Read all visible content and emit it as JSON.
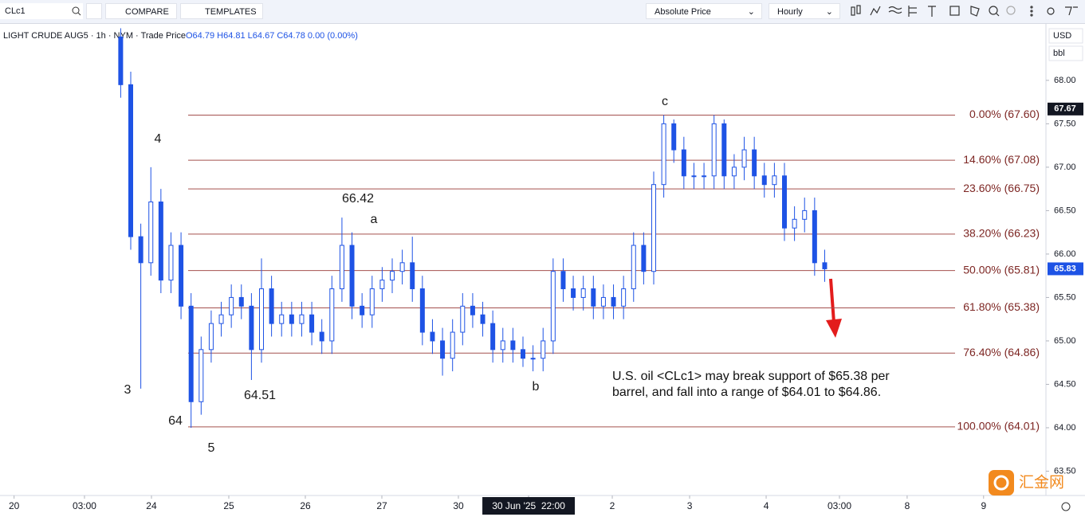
{
  "toolbar": {
    "symbol": "CLc1",
    "compare": "COMPARE",
    "templates": "TEMPLATES",
    "price_mode": "Absolute Price",
    "interval": "Hourly",
    "currency": "USD",
    "unit": "bbl"
  },
  "chart_data": {
    "type": "candlestick",
    "title": "LIGHT CRUDE AUG5 · 1h · NYM · Trade Price",
    "subtitle": "O64.79 H64.81 L64.67 C64.78 0.00 (0.00%)",
    "color": "#1e53e5",
    "x": [
      0,
      1,
      2,
      3,
      4,
      5,
      6,
      7,
      8,
      9,
      10,
      11,
      12,
      13,
      14,
      15,
      16,
      17,
      18,
      19,
      20,
      21,
      22,
      23,
      24,
      25,
      26,
      27,
      28,
      29,
      30,
      31,
      32,
      33,
      34,
      35,
      36,
      37,
      38,
      39,
      40,
      41,
      42,
      43,
      44,
      45,
      46,
      47,
      48,
      49,
      50,
      51,
      52,
      53,
      54,
      55,
      56,
      57,
      58,
      59,
      60,
      61,
      62,
      63,
      64,
      65,
      66,
      67,
      68,
      69,
      70
    ],
    "open": [
      68.5,
      67.95,
      66.2,
      65.9,
      66.6,
      65.7,
      66.1,
      65.4,
      64.3,
      64.9,
      65.2,
      65.3,
      65.5,
      65.4,
      64.9,
      65.6,
      65.2,
      65.3,
      65.2,
      65.3,
      65.1,
      65.0,
      65.6,
      66.1,
      65.4,
      65.3,
      65.6,
      65.7,
      65.8,
      65.9,
      65.6,
      65.1,
      65.0,
      64.8,
      65.1,
      65.4,
      65.3,
      65.2,
      64.9,
      65.0,
      64.9,
      64.8,
      64.8,
      65.0,
      65.8,
      65.6,
      65.5,
      65.6,
      65.4,
      65.5,
      65.4,
      65.6,
      66.1,
      65.8,
      66.8,
      67.5,
      67.2,
      66.9,
      66.9,
      66.9,
      67.5,
      66.9,
      67.0,
      67.2,
      66.9,
      66.8,
      66.9,
      66.3,
      66.4,
      66.5,
      65.9
    ],
    "high": [
      68.6,
      68.1,
      66.35,
      67.0,
      66.75,
      66.25,
      66.25,
      65.55,
      65.05,
      65.35,
      65.45,
      65.65,
      65.65,
      65.55,
      65.95,
      65.75,
      65.45,
      65.45,
      65.45,
      65.45,
      65.25,
      65.75,
      66.42,
      66.25,
      65.55,
      65.75,
      65.85,
      65.95,
      66.05,
      66.2,
      65.75,
      65.25,
      65.15,
      65.25,
      65.55,
      65.55,
      65.45,
      65.35,
      65.15,
      65.15,
      65.05,
      64.95,
      65.15,
      65.95,
      65.95,
      65.75,
      65.75,
      65.75,
      65.65,
      65.65,
      65.75,
      66.25,
      66.25,
      66.95,
      67.6,
      67.55,
      67.35,
      67.05,
      67.05,
      67.6,
      67.55,
      67.15,
      67.35,
      67.35,
      67.05,
      67.05,
      67.05,
      66.55,
      66.65,
      66.65,
      66.05
    ],
    "low": [
      67.8,
      66.05,
      64.45,
      65.75,
      65.55,
      65.55,
      65.25,
      64.0,
      64.15,
      64.75,
      65.05,
      65.15,
      65.25,
      64.55,
      64.75,
      65.05,
      65.05,
      65.05,
      65.05,
      64.95,
      64.85,
      64.85,
      65.45,
      65.25,
      65.15,
      65.15,
      65.45,
      65.55,
      65.65,
      65.45,
      64.95,
      64.85,
      64.6,
      64.65,
      64.95,
      65.15,
      65.05,
      64.75,
      64.75,
      64.75,
      64.7,
      64.65,
      64.65,
      64.85,
      65.45,
      65.35,
      65.35,
      65.25,
      65.25,
      65.25,
      65.25,
      65.45,
      65.65,
      65.65,
      66.65,
      67.05,
      66.75,
      66.75,
      66.75,
      66.75,
      66.75,
      66.75,
      66.85,
      66.75,
      66.65,
      66.65,
      66.15,
      66.15,
      66.25,
      65.75,
      65.68
    ],
    "close": [
      67.95,
      66.2,
      65.9,
      66.6,
      65.7,
      66.1,
      65.4,
      64.3,
      64.9,
      65.2,
      65.3,
      65.5,
      65.4,
      64.9,
      65.6,
      65.2,
      65.3,
      65.2,
      65.3,
      65.1,
      65.0,
      65.6,
      66.1,
      65.4,
      65.3,
      65.6,
      65.7,
      65.8,
      65.9,
      65.6,
      65.1,
      65.0,
      64.8,
      65.1,
      65.4,
      65.3,
      65.2,
      64.9,
      65.0,
      64.9,
      64.8,
      64.8,
      65.0,
      65.8,
      65.6,
      65.5,
      65.6,
      65.4,
      65.5,
      65.4,
      65.6,
      66.1,
      65.8,
      66.8,
      67.5,
      67.2,
      66.9,
      66.9,
      66.9,
      67.5,
      66.9,
      67.0,
      67.2,
      66.9,
      66.8,
      66.9,
      66.3,
      66.4,
      66.5,
      65.9,
      65.83
    ],
    "xlim": [
      -12,
      92
    ],
    "xticks": [
      {
        "value": -10.6,
        "label": "20"
      },
      {
        "value": -3.6,
        "label": "03:00"
      },
      {
        "value": 3.06,
        "label": "24"
      },
      {
        "value": 10.75,
        "label": "25"
      },
      {
        "value": 18.36,
        "label": "26"
      },
      {
        "value": 25.97,
        "label": "27"
      },
      {
        "value": 33.58,
        "label": "30"
      },
      {
        "value": 40.56,
        "label": "30 Jun '25  22:00"
      },
      {
        "value": 48.88,
        "label": "2"
      },
      {
        "value": 56.57,
        "label": "3"
      },
      {
        "value": 64.18,
        "label": "4"
      },
      {
        "value": 71.47,
        "label": "03:00"
      },
      {
        "value": 78.2,
        "label": "8"
      },
      {
        "value": 85.8,
        "label": "9"
      }
    ],
    "ylim": [
      63.22,
      68.65
    ],
    "yticks": [
      {
        "value": 63.5,
        "label": "63.50"
      },
      {
        "value": 64,
        "label": "64.00"
      },
      {
        "value": 64.5,
        "label": "64.50"
      },
      {
        "value": 65,
        "label": "65.00"
      },
      {
        "value": 65.5,
        "label": "65.50"
      },
      {
        "value": 66,
        "label": "66.00"
      },
      {
        "value": 66.5,
        "label": "66.50"
      },
      {
        "value": 67,
        "label": "67.00"
      },
      {
        "value": 67.5,
        "label": "67.50"
      },
      {
        "value": 68,
        "label": "68.00"
      }
    ],
    "grid": false,
    "fib_color": "#a4504e",
    "fib_levels": [
      {
        "value": 67.6,
        "label": "0.00% (67.60)"
      },
      {
        "value": 67.08,
        "label": "14.60% (67.08)"
      },
      {
        "value": 66.75,
        "label": "23.60% (66.75)"
      },
      {
        "value": 66.23,
        "label": "38.20% (66.23)"
      },
      {
        "value": 65.81,
        "label": "50.00% (65.81)"
      },
      {
        "value": 65.38,
        "label": "61.80% (65.38)"
      },
      {
        "value": 64.86,
        "label": "76.40% (64.86)"
      },
      {
        "value": 64.01,
        "label": "100.00% (64.01)"
      }
    ],
    "price_tags": [
      {
        "value": 67.67,
        "color": "#131722"
      },
      {
        "value": 65.83,
        "color": "#1e53e5"
      }
    ],
    "annotations": [
      "4",
      "3",
      "64",
      "5",
      "64.51",
      "66.42",
      "a",
      "b",
      "c"
    ],
    "note": [
      "U.S. oil <CLc1> may break support of $65.38 per",
      "barrel, and fall into a range of $64.01 to $64.86."
    ],
    "watermark": "汇金网"
  }
}
